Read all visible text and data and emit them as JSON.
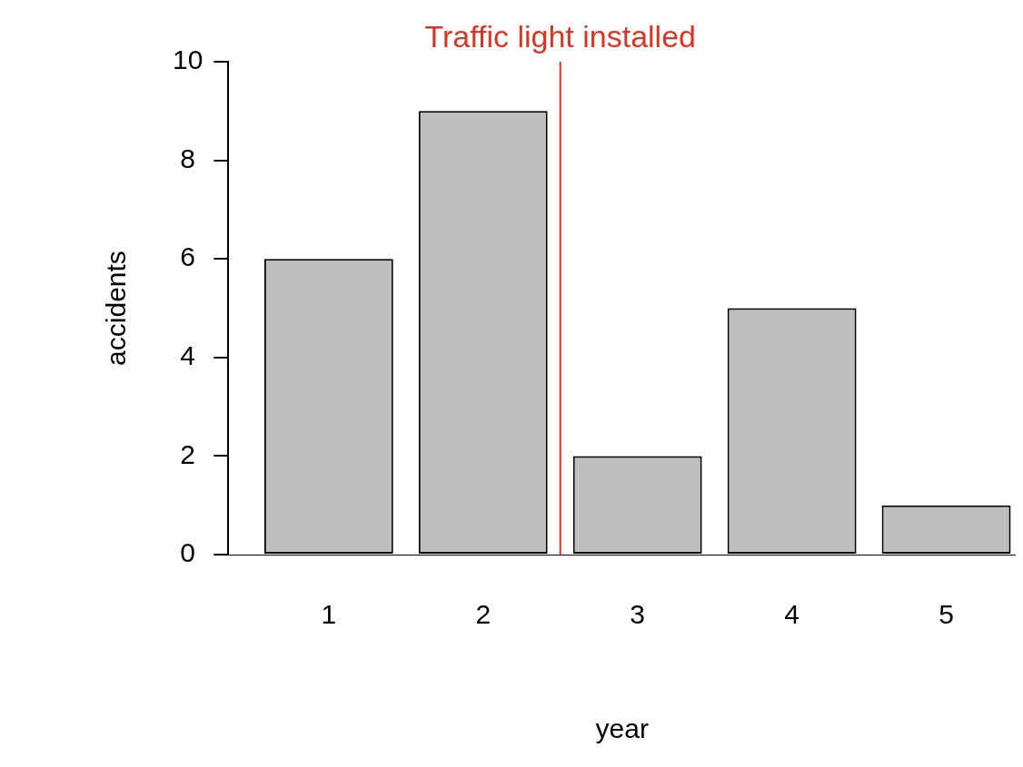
{
  "chart_data": {
    "type": "bar",
    "xlabel": "year",
    "ylabel": "accidents",
    "x": [
      1,
      2,
      3,
      4,
      5
    ],
    "values": [
      6,
      9,
      2,
      5,
      1
    ],
    "color": "#bebebe",
    "xlim": [
      0.35,
      5.45
    ],
    "xticks": [
      1,
      2,
      3,
      4,
      5
    ],
    "ylim": [
      0,
      10
    ],
    "yticks": [
      0,
      2,
      4,
      6,
      8,
      10
    ],
    "ref_lines": [
      {
        "axis": "x",
        "value": 2.5,
        "label": "Traffic light installed",
        "color": "#dd3322"
      }
    ]
  }
}
